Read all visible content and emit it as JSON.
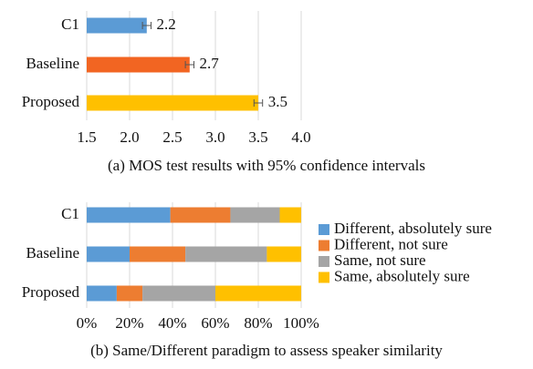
{
  "chart_data": [
    {
      "type": "bar",
      "orientation": "horizontal",
      "caption": "(a)  MOS test results with 95% confidence intervals",
      "categories": [
        "C1",
        "Baseline",
        "Proposed"
      ],
      "values": [
        2.2,
        2.7,
        3.5
      ],
      "errors": [
        0.05,
        0.05,
        0.05
      ],
      "color": [
        "#5b9bd5",
        "#f26522",
        "#ffc000"
      ],
      "xlim": [
        1.5,
        4
      ],
      "xticks": [
        1.5,
        {
          "value": 2,
          "label": "2.0"
        },
        2.5,
        {
          "value": 3,
          "label": "3.0"
        },
        3.5,
        {
          "value": 4,
          "label": "4.0"
        }
      ],
      "grid": true
    },
    {
      "type": "stacked_bar",
      "orientation": "horizontal",
      "caption": "(b)  Same/Different paradigm to assess speaker similarity",
      "categories": [
        "C1",
        "Baseline",
        "Proposed"
      ],
      "series": [
        {
          "name": "Different, absolutely sure",
          "color": "#5b9bd5",
          "values": [
            39,
            20,
            14
          ]
        },
        {
          "name": "Different, not sure",
          "color": "#ed7d31",
          "values": [
            28,
            26,
            12
          ]
        },
        {
          "name": "Same, not sure",
          "color": "#a5a5a5",
          "values": [
            23,
            38,
            34
          ]
        },
        {
          "name": "Same, absolutely sure",
          "color": "#ffc000",
          "values": [
            10,
            16,
            40
          ]
        }
      ],
      "xlim": [
        0,
        100
      ],
      "xticks": [
        {
          "value": 0,
          "label": "0%"
        },
        {
          "value": 20,
          "label": "20%"
        },
        {
          "value": 40,
          "label": "40%"
        },
        {
          "value": 60,
          "label": "60%"
        },
        {
          "value": 80,
          "label": "80%"
        },
        {
          "value": 100,
          "label": "100%"
        }
      ],
      "grid": true,
      "legend": "right"
    }
  ]
}
